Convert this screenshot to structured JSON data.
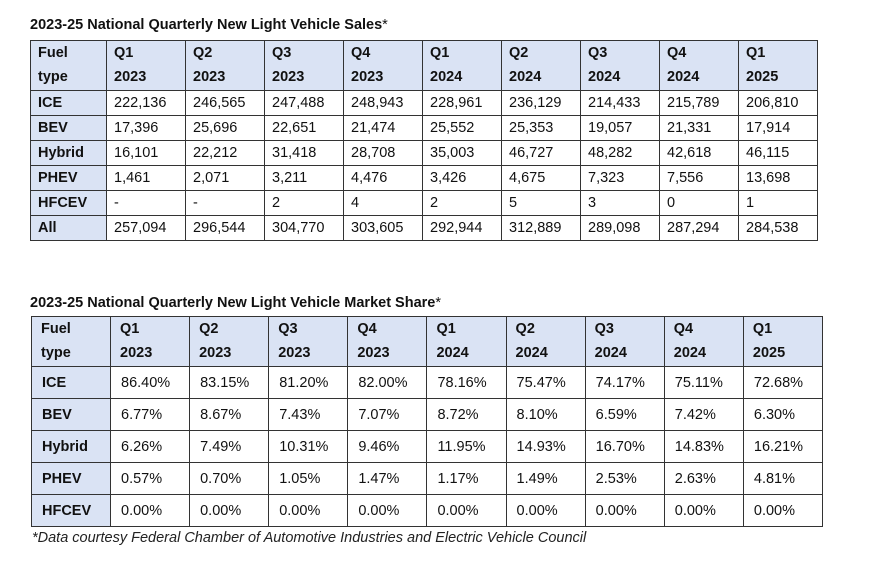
{
  "sales": {
    "title": "2023-25 National Quarterly New Light Vehicle Sales",
    "title_star": "*",
    "header": {
      "fuel": [
        "Fuel",
        "type"
      ],
      "quarters": [
        [
          "Q1",
          "2023"
        ],
        [
          "Q2",
          "2023"
        ],
        [
          "Q3",
          "2023"
        ],
        [
          "Q4",
          "2023"
        ],
        [
          "Q1",
          "2024"
        ],
        [
          "Q2",
          "2024"
        ],
        [
          "Q3",
          "2024"
        ],
        [
          "Q4",
          "2024"
        ],
        [
          "Q1",
          "2025"
        ]
      ]
    },
    "rows": [
      {
        "label": "ICE",
        "values": [
          "222,136",
          "246,565",
          "247,488",
          "248,943",
          "228,961",
          "236,129",
          "214,433",
          "215,789",
          "206,810"
        ]
      },
      {
        "label": "BEV",
        "values": [
          "17,396",
          "25,696",
          "22,651",
          "21,474",
          "25,552",
          "25,353",
          "19,057",
          "21,331",
          "17,914"
        ]
      },
      {
        "label": "Hybrid",
        "values": [
          "16,101",
          "22,212",
          "31,418",
          "28,708",
          "35,003",
          "46,727",
          "48,282",
          "42,618",
          "46,115"
        ]
      },
      {
        "label": "PHEV",
        "values": [
          "1,461",
          "2,071",
          "3,211",
          "4,476",
          "3,426",
          "4,675",
          "7,323",
          "7,556",
          "13,698"
        ]
      },
      {
        "label": "HFCEV",
        "values": [
          "-",
          "-",
          "2",
          "4",
          "2",
          "5",
          "3",
          "0",
          "1"
        ]
      },
      {
        "label": "All",
        "values": [
          "257,094",
          "296,544",
          "304,770",
          "303,605",
          "292,944",
          "312,889",
          "289,098",
          "287,294",
          "284,538"
        ]
      }
    ]
  },
  "share": {
    "title": "2023-25 National Quarterly New Light Vehicle Market Share",
    "title_star": "*",
    "header": {
      "fuel": [
        "Fuel",
        "type"
      ],
      "quarters": [
        [
          "Q1",
          "2023"
        ],
        [
          "Q2",
          "2023"
        ],
        [
          "Q3",
          "2023"
        ],
        [
          "Q4",
          "2023"
        ],
        [
          "Q1",
          "2024"
        ],
        [
          "Q2",
          "2024"
        ],
        [
          "Q3",
          "2024"
        ],
        [
          "Q4",
          "2024"
        ],
        [
          "Q1",
          "2025"
        ]
      ]
    },
    "rows": [
      {
        "label": "ICE",
        "values": [
          "86.40%",
          "83.15%",
          "81.20%",
          "82.00%",
          "78.16%",
          "75.47%",
          "74.17%",
          "75.11%",
          "72.68%"
        ]
      },
      {
        "label": "BEV",
        "values": [
          "6.77%",
          "8.67%",
          "7.43%",
          "7.07%",
          "8.72%",
          "8.10%",
          "6.59%",
          "7.42%",
          "6.30%"
        ]
      },
      {
        "label": "Hybrid",
        "values": [
          "6.26%",
          "7.49%",
          "10.31%",
          "9.46%",
          "11.95%",
          "14.93%",
          "16.70%",
          "14.83%",
          "16.21%"
        ]
      },
      {
        "label": "PHEV",
        "values": [
          "0.57%",
          "0.70%",
          "1.05%",
          "1.47%",
          "1.17%",
          "1.49%",
          "2.53%",
          "2.63%",
          "4.81%"
        ]
      },
      {
        "label": "HFCEV",
        "values": [
          "0.00%",
          "0.00%",
          "0.00%",
          "0.00%",
          "0.00%",
          "0.00%",
          "0.00%",
          "0.00%",
          "0.00%"
        ]
      }
    ]
  },
  "footnote": "*Data courtesy Federal Chamber of Automotive Industries and Electric Vehicle Council"
}
